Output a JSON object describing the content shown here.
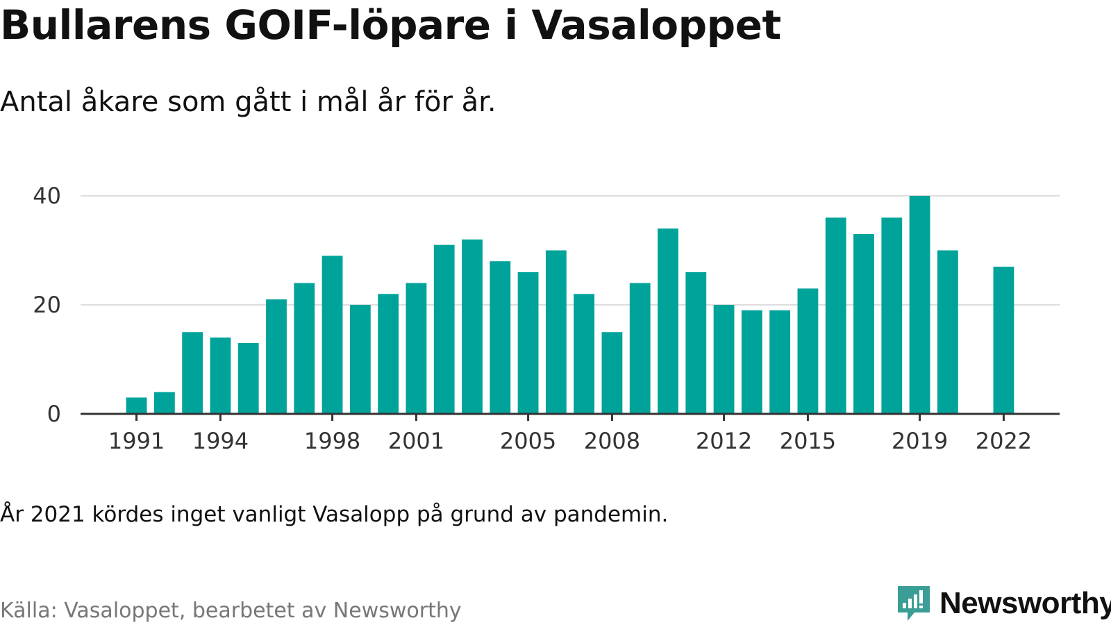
{
  "title": "Bullarens GOIF-löpare i Vasaloppet",
  "subtitle": "Antal åkare som gått i mål år för år.",
  "note": "År 2021 kördes inget vanligt Vasalopp på grund av pandemin.",
  "source": "Källa: Vasaloppet, bearbetet av Newsworthy",
  "brand": {
    "name": "Newsworthy",
    "icon": "newsworthy-logo-icon"
  },
  "colors": {
    "bar": "#00a39a",
    "grid": "#dddddd",
    "axis": "#333333",
    "brand": "#3a9e96"
  },
  "chart_data": {
    "type": "bar",
    "x": [
      1991,
      1992,
      1993,
      1994,
      1995,
      1996,
      1997,
      1998,
      1999,
      2000,
      2001,
      2002,
      2003,
      2004,
      2005,
      2006,
      2007,
      2008,
      2009,
      2010,
      2011,
      2012,
      2013,
      2014,
      2015,
      2016,
      2017,
      2018,
      2019,
      2020,
      2021,
      2022
    ],
    "values": [
      3,
      4,
      15,
      14,
      13,
      21,
      24,
      29,
      20,
      22,
      24,
      31,
      32,
      28,
      26,
      30,
      22,
      15,
      24,
      34,
      26,
      20,
      19,
      19,
      23,
      36,
      33,
      36,
      40,
      30,
      null,
      27
    ],
    "x_tick_labels": [
      "1991",
      "1994",
      "1998",
      "2001",
      "2005",
      "2008",
      "2012",
      "2015",
      "2019",
      "2022"
    ],
    "y_ticks": [
      0,
      20,
      40
    ],
    "ylim": [
      0,
      40
    ],
    "xlabel": "",
    "ylabel": "",
    "grid": true,
    "legend": "none"
  }
}
